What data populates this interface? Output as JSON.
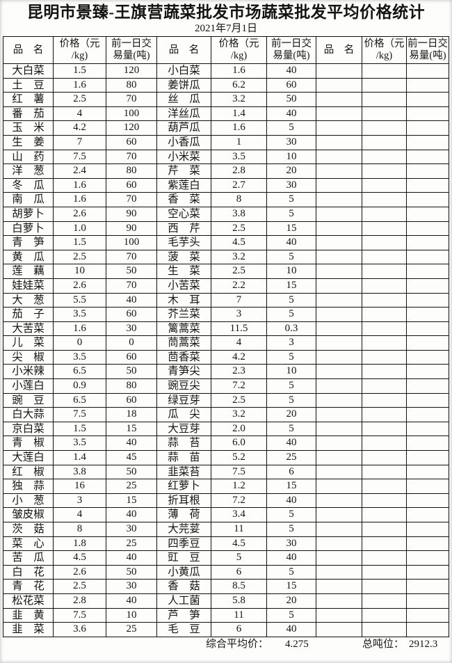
{
  "title": "昆明市景臻-王旗营蔬菜批发市场蔬菜批发平均价格统计",
  "date": "2021年7月1日",
  "colors": {
    "text": "#141414",
    "background": "#fdfdfc",
    "table_border": "#101010"
  },
  "table": {
    "row_count": 40,
    "headers": {
      "name": "品　名",
      "price_line1": "价格（元",
      "price_line2": "/kg)",
      "volume_line1": "前一日交",
      "volume_line2": "易量(吨)"
    },
    "columns": [
      {
        "rows": [
          [
            "大白菜",
            "1.5",
            "120"
          ],
          [
            "土　豆",
            "1.6",
            "80"
          ],
          [
            "红　薯",
            "2.5",
            "70"
          ],
          [
            "番　茄",
            "4",
            "100"
          ],
          [
            "玉　米",
            "4.2",
            "120"
          ],
          [
            "生　姜",
            "7",
            "60"
          ],
          [
            "山　药",
            "7.5",
            "70"
          ],
          [
            "洋　葱",
            "2.4",
            "80"
          ],
          [
            "冬　瓜",
            "1.6",
            "60"
          ],
          [
            "南　瓜",
            "1.6",
            "70"
          ],
          [
            "胡萝卜",
            "2.6",
            "90"
          ],
          [
            "白萝卜",
            "1.0",
            "90"
          ],
          [
            "青　笋",
            "1.5",
            "100"
          ],
          [
            "黄　瓜",
            "2.5",
            "70"
          ],
          [
            "莲　藕",
            "10",
            "50"
          ],
          [
            "娃娃菜",
            "2.6",
            "70"
          ],
          [
            "大　葱",
            "5.5",
            "40"
          ],
          [
            "茄　子",
            "3.5",
            "60"
          ],
          [
            "大苦菜",
            "1.6",
            "30"
          ],
          [
            "儿　菜",
            "0",
            "0"
          ],
          [
            "尖　椒",
            "3.5",
            "60"
          ],
          [
            "小米辣",
            "6.5",
            "50"
          ],
          [
            "小莲白",
            "0.9",
            "80"
          ],
          [
            "豌　豆",
            "6.5",
            "60"
          ],
          [
            "白大蒜",
            "7.5",
            "18"
          ],
          [
            "京白菜",
            "1.5",
            "15"
          ],
          [
            "青　椒",
            "3.5",
            "40"
          ],
          [
            "大莲白",
            "1.4",
            "45"
          ],
          [
            "红　椒",
            "3.8",
            "50"
          ],
          [
            "独　蒜",
            "16",
            "25"
          ],
          [
            "小　葱",
            "3",
            "15"
          ],
          [
            "皱皮椒",
            "4",
            "40"
          ],
          [
            "茨　菇",
            "8",
            "30"
          ],
          [
            "菜　心",
            "1.8",
            "25"
          ],
          [
            "苦　瓜",
            "4.5",
            "40"
          ],
          [
            "白　花",
            "2.6",
            "50"
          ],
          [
            "青　花",
            "2.5",
            "30"
          ],
          [
            "松花菜",
            "2.8",
            "40"
          ],
          [
            "韭　黄",
            "7.5",
            "10"
          ],
          [
            "韭　菜",
            "3.6",
            "25"
          ]
        ]
      },
      {
        "rows": [
          [
            "小白菜",
            "1.6",
            "40"
          ],
          [
            "姜饼瓜",
            "6.2",
            "60"
          ],
          [
            "丝　瓜",
            "3.2",
            "50"
          ],
          [
            "洋丝瓜",
            "1.4",
            "40"
          ],
          [
            "葫芦瓜",
            "1.6",
            "5"
          ],
          [
            "小香瓜",
            "1",
            "30"
          ],
          [
            "小米菜",
            "3.5",
            "10"
          ],
          [
            "芹　菜",
            "2.8",
            "20"
          ],
          [
            "紫莲白",
            "2.7",
            "30"
          ],
          [
            "香　菜",
            "8",
            "5"
          ],
          [
            "空心菜",
            "3.8",
            "5"
          ],
          [
            "西　芹",
            "2.5",
            "15"
          ],
          [
            "毛芋头",
            "4.5",
            "40"
          ],
          [
            "菠　菜",
            "3.2",
            "5"
          ],
          [
            "生　菜",
            "2.5",
            "10"
          ],
          [
            "小苦菜",
            "2.2",
            "15"
          ],
          [
            "木　耳",
            "7",
            "5"
          ],
          [
            "芥兰菜",
            "3",
            "5"
          ],
          [
            "篱蒿菜",
            "11.5",
            "0.3"
          ],
          [
            "茼蒿菜",
            "4",
            "3"
          ],
          [
            "茴香菜",
            "4.2",
            "5"
          ],
          [
            "青笋尖",
            "2.3",
            "10"
          ],
          [
            "豌豆尖",
            "7.2",
            "5"
          ],
          [
            "绿豆芽",
            "2.5",
            "5"
          ],
          [
            "瓜　尖",
            "3.2",
            "20"
          ],
          [
            "大豆芽",
            "2.0",
            "5"
          ],
          [
            "蒜　苔",
            "6.0",
            "40"
          ],
          [
            "蒜　苗",
            "5.2",
            "25"
          ],
          [
            "韭菜苔",
            "7.5",
            "6"
          ],
          [
            "红萝卜",
            "1.2",
            "15"
          ],
          [
            "折耳根",
            "7.2",
            "40"
          ],
          [
            "薄　荷",
            "3.4",
            "5"
          ],
          [
            "大芫荽",
            "11",
            "5"
          ],
          [
            "四季豆",
            "4.5",
            "30"
          ],
          [
            "豇　豆",
            "5",
            "40"
          ],
          [
            "小黄瓜",
            "6",
            "5"
          ],
          [
            "香　菇",
            "8.5",
            "15"
          ],
          [
            "人工菌",
            "5.8",
            "20"
          ],
          [
            "芦　笋",
            "11",
            "5"
          ],
          [
            "毛　豆",
            "6",
            "40"
          ]
        ]
      },
      {
        "rows": []
      }
    ]
  },
  "footer": {
    "average_label": "综合平均价：",
    "average_value": "4.275",
    "tonnage_label": "总吨位：",
    "tonnage_value": "2912.3"
  }
}
